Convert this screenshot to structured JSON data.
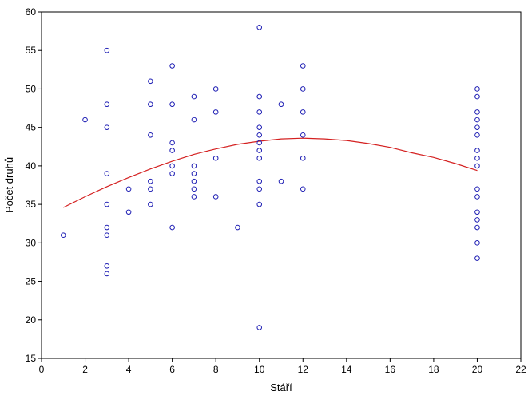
{
  "chart_data": {
    "type": "scatter",
    "xlabel": "Stáří",
    "ylabel": "Počet druhů",
    "xlim": [
      0,
      22
    ],
    "ylim": [
      15,
      60
    ],
    "x_ticks": [
      0,
      2,
      4,
      6,
      8,
      10,
      12,
      14,
      16,
      18,
      20,
      22
    ],
    "y_ticks": [
      15,
      20,
      25,
      30,
      35,
      40,
      45,
      50,
      55,
      60
    ],
    "grid": false,
    "colors": {
      "points": "#1f1fb4",
      "fit": "#d42020",
      "axis": "#000000"
    },
    "points": [
      [
        1,
        31
      ],
      [
        2,
        46
      ],
      [
        3,
        55
      ],
      [
        3,
        48
      ],
      [
        3,
        45
      ],
      [
        3,
        39
      ],
      [
        3,
        35
      ],
      [
        3,
        32
      ],
      [
        3,
        31
      ],
      [
        3,
        27
      ],
      [
        3,
        26
      ],
      [
        4,
        37
      ],
      [
        4,
        34
      ],
      [
        5,
        51
      ],
      [
        5,
        48
      ],
      [
        5,
        44
      ],
      [
        5,
        38
      ],
      [
        5,
        37
      ],
      [
        5,
        35
      ],
      [
        6,
        53
      ],
      [
        6,
        48
      ],
      [
        6,
        43
      ],
      [
        6,
        42
      ],
      [
        6,
        40
      ],
      [
        6,
        39
      ],
      [
        6,
        32
      ],
      [
        7,
        49
      ],
      [
        7,
        46
      ],
      [
        7,
        40
      ],
      [
        7,
        39
      ],
      [
        7,
        38
      ],
      [
        7,
        37
      ],
      [
        7,
        36
      ],
      [
        8,
        50
      ],
      [
        8,
        47
      ],
      [
        8,
        41
      ],
      [
        8,
        36
      ],
      [
        9,
        32
      ],
      [
        10,
        58
      ],
      [
        10,
        49
      ],
      [
        10,
        47
      ],
      [
        10,
        45
      ],
      [
        10,
        44
      ],
      [
        10,
        43
      ],
      [
        10,
        42
      ],
      [
        10,
        41
      ],
      [
        10,
        38
      ],
      [
        10,
        37
      ],
      [
        10,
        35
      ],
      [
        10,
        19
      ],
      [
        11,
        48
      ],
      [
        11,
        38
      ],
      [
        12,
        53
      ],
      [
        12,
        50
      ],
      [
        12,
        47
      ],
      [
        12,
        44
      ],
      [
        12,
        41
      ],
      [
        12,
        37
      ],
      [
        20,
        50
      ],
      [
        20,
        49
      ],
      [
        20,
        47
      ],
      [
        20,
        46
      ],
      [
        20,
        45
      ],
      [
        20,
        44
      ],
      [
        20,
        42
      ],
      [
        20,
        41
      ],
      [
        20,
        40
      ],
      [
        20,
        37
      ],
      [
        20,
        36
      ],
      [
        20,
        34
      ],
      [
        20,
        33
      ],
      [
        20,
        32
      ],
      [
        20,
        30
      ],
      [
        20,
        28
      ]
    ],
    "fit_curve": [
      [
        1,
        34.6
      ],
      [
        2,
        36.0
      ],
      [
        3,
        37.3
      ],
      [
        4,
        38.5
      ],
      [
        5,
        39.6
      ],
      [
        6,
        40.6
      ],
      [
        7,
        41.5
      ],
      [
        8,
        42.2
      ],
      [
        9,
        42.8
      ],
      [
        10,
        43.2
      ],
      [
        11,
        43.5
      ],
      [
        12,
        43.6
      ],
      [
        13,
        43.5
      ],
      [
        14,
        43.3
      ],
      [
        15,
        42.9
      ],
      [
        16,
        42.4
      ],
      [
        17,
        41.7
      ],
      [
        18,
        41.1
      ],
      [
        19,
        40.3
      ],
      [
        20,
        39.4
      ]
    ]
  }
}
